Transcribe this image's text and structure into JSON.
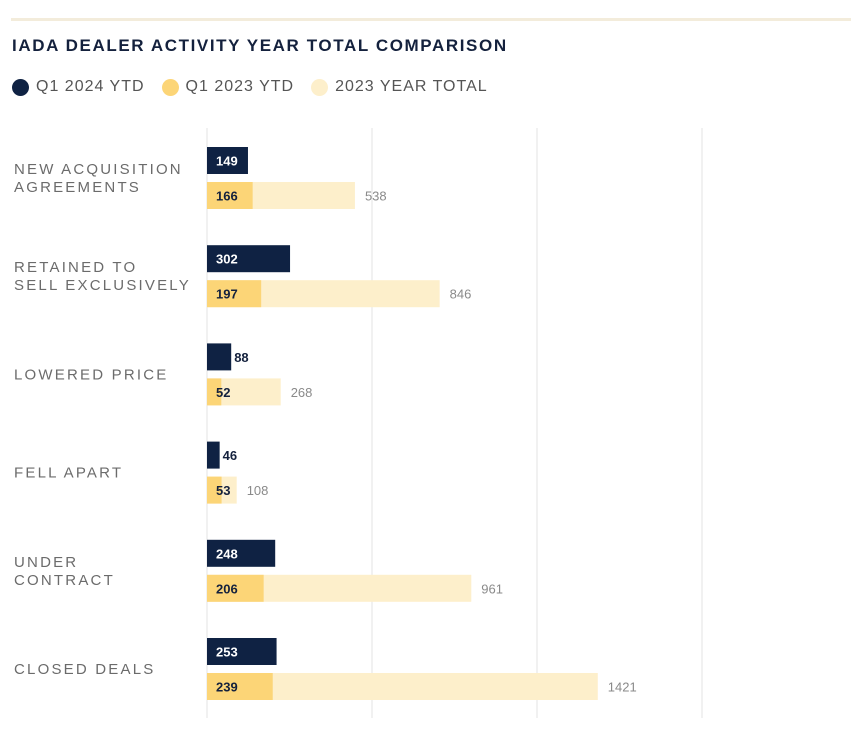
{
  "title": "IADA DEALER ACTIVITY YEAR TOTAL COMPARISON",
  "colors": {
    "q1_2024": "#0f2243",
    "q1_2023": "#fcd577",
    "total_2023": "#fdefcb",
    "grid": "#e3e3e3",
    "label": "#6b6b6b"
  },
  "legend": [
    {
      "label": "Q1 2024 YTD",
      "color": "#0f2243"
    },
    {
      "label": "Q1 2023 YTD",
      "color": "#fcd577"
    },
    {
      "label": "2023 YEAR TOTAL",
      "color": "#fdefcb"
    }
  ],
  "chart_data": {
    "type": "bar",
    "orientation": "horizontal",
    "title": "IADA DEALER ACTIVITY YEAR TOTAL COMPARISON",
    "categories": [
      [
        "NEW ACQUISITION",
        "AGREEMENTS"
      ],
      [
        "RETAINED TO",
        "SELL EXCLUSIVELY"
      ],
      [
        "LOWERED PRICE"
      ],
      [
        "FELL APART"
      ],
      [
        "UNDER",
        "CONTRACT"
      ],
      [
        "CLOSED DEALS"
      ]
    ],
    "series": [
      {
        "name": "Q1 2024 YTD",
        "values": [
          149,
          302,
          88,
          46,
          248,
          253
        ]
      },
      {
        "name": "Q1 2023 YTD",
        "values": [
          166,
          197,
          52,
          53,
          206,
          239
        ]
      },
      {
        "name": "2023 YEAR TOTAL",
        "values": [
          538,
          846,
          268,
          108,
          961,
          1421
        ]
      }
    ],
    "xlim": [
      0,
      1800
    ],
    "gridlines": [
      0,
      600,
      1200,
      1800
    ],
    "grid": true,
    "legend_position": "top-left"
  }
}
